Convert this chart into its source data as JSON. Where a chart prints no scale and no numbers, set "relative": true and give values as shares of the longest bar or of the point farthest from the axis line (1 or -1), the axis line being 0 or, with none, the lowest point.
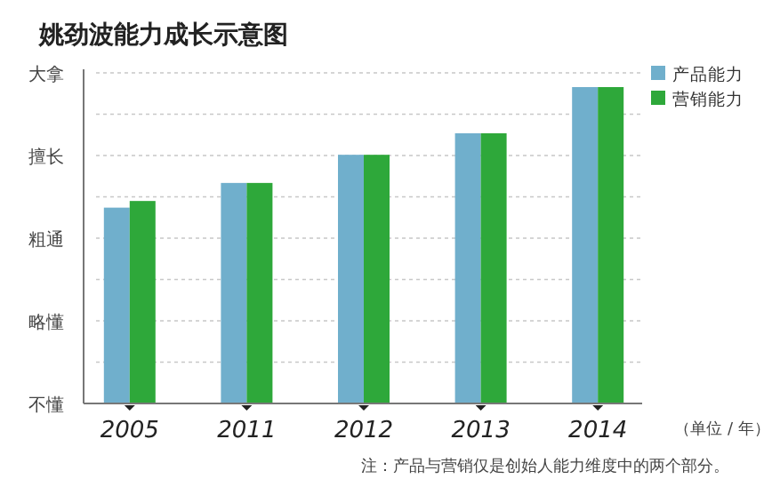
{
  "chart_data": {
    "type": "bar",
    "title": "姚劲波能力成长示意图",
    "relative": true,
    "categories": [
      "2005",
      "2011",
      "2012",
      "2013",
      "2014"
    ],
    "series": [
      {
        "name": "产品能力",
        "color": "#70afcc",
        "values": [
          0.619,
          0.697,
          0.786,
          0.854,
          1
        ]
      },
      {
        "name": "营销能力",
        "color": "#2ea83a",
        "values": [
          0.64,
          0.697,
          0.786,
          0.854,
          1
        ]
      }
    ],
    "grid": "y",
    "legend": "top right",
    "annotations": [
      "不懂",
      "略懂",
      "粗通",
      "擅长",
      "大拿",
      "（单位 / 年）",
      "注：产品与营销仅是创始人能力维度中的两个部分。"
    ]
  }
}
